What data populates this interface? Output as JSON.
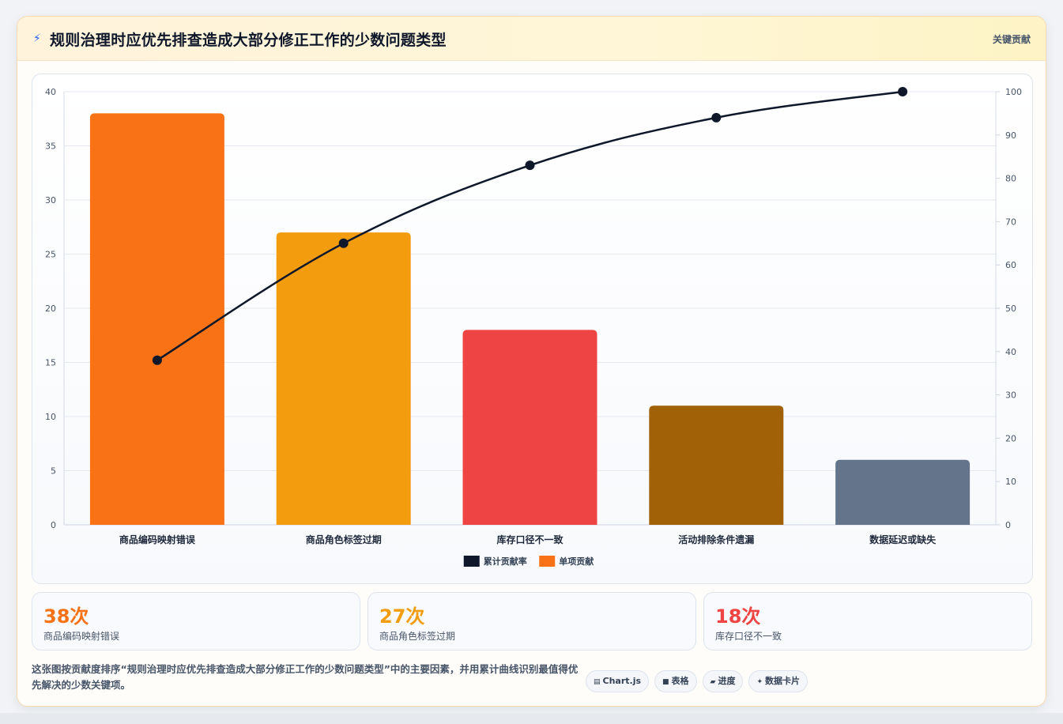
{
  "header": {
    "icon": "lightning-icon",
    "title": "规则治理时应优先排查造成大部分修正工作的少数问题类型",
    "tag": "关键贡献"
  },
  "chart_data": {
    "type": "bar",
    "categories": [
      "商品编码映射错误",
      "商品角色标签过期",
      "库存口径不一致",
      "活动排除条件遗漏",
      "数据延迟或缺失"
    ],
    "series": [
      {
        "name": "单项贡献",
        "type": "bar",
        "axis": "left",
        "values": [
          38,
          27,
          18,
          11,
          6
        ],
        "colors": [
          "#f97316",
          "#f39c0e",
          "#ef4444",
          "#a16207",
          "#64748b"
        ]
      },
      {
        "name": "累计贡献率",
        "type": "line",
        "axis": "right",
        "values": [
          38,
          65,
          83,
          94,
          100
        ],
        "color": "#0f172a"
      }
    ],
    "ylim": [
      0,
      40
    ],
    "y_ticks": [
      "0",
      "5",
      "10",
      "15",
      "20",
      "25",
      "30",
      "35",
      "40"
    ],
    "y2lim": [
      0,
      100
    ],
    "y2_ticks": [
      "0",
      "10",
      "20",
      "30",
      "40",
      "50",
      "60",
      "70",
      "80",
      "90",
      "100"
    ],
    "legend": [
      {
        "label": "累计贡献率",
        "color": "#0f172a"
      },
      {
        "label": "单项贡献",
        "color": "#f97316"
      }
    ],
    "legend_position": "bottom",
    "grid": true
  },
  "stats": [
    {
      "value": "38次",
      "label": "商品编码映射错误",
      "color": "#f97316"
    },
    {
      "value": "27次",
      "label": "商品角色标签过期",
      "color": "#f39c0e"
    },
    {
      "value": "18次",
      "label": "库存口径不一致",
      "color": "#ef4444"
    }
  ],
  "footer": {
    "description": "这张图按贡献度排序“规则治理时应优先排查造成大部分修正工作的少数问题类型”中的主要因素，并用累计曲线识别最值得优先解决的少数关键项。",
    "pills": [
      {
        "icon": "chart-icon",
        "glyph": "▤",
        "label": "Chart.js"
      },
      {
        "icon": "table-icon",
        "glyph": "■",
        "label": "表格"
      },
      {
        "icon": "progress-icon",
        "glyph": "▰",
        "label": "进度"
      },
      {
        "icon": "sparkle-icon",
        "glyph": "✦",
        "label": "数据卡片"
      }
    ]
  }
}
